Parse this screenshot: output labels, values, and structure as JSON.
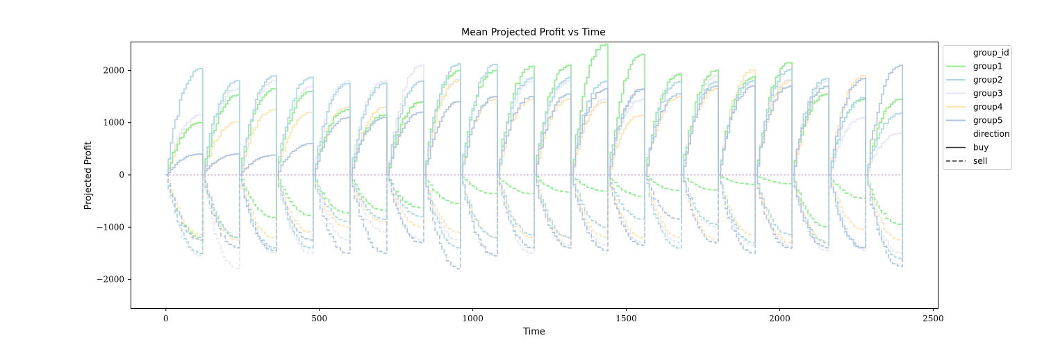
{
  "chart_data": {
    "type": "line",
    "title": "Mean Projected Profit vs Time",
    "xlabel": "Time",
    "ylabel": "Projected Profit",
    "xlim": [
      -115,
      2515
    ],
    "ylim": [
      -2550,
      2550
    ],
    "x_ticks": [
      0,
      500,
      1000,
      1500,
      2000,
      2500
    ],
    "y_ticks": [
      -2000,
      -1000,
      0,
      1000,
      2000
    ],
    "x_tick_labels": [
      "0",
      "500",
      "1000",
      "1500",
      "2000",
      "2500"
    ],
    "y_tick_labels": [
      "−2000",
      "−1000",
      "0",
      "1000",
      "2000"
    ],
    "period": 120,
    "periods": 20,
    "grid": false,
    "legend_position": "outside-top-right",
    "legend": {
      "hue_title": "group_id",
      "style_title": "direction",
      "groups": [
        {
          "name": "group1",
          "color": "#90ee90"
        },
        {
          "name": "group2",
          "color": "#add8e6"
        },
        {
          "name": "group3",
          "color": "#e6e6fa"
        },
        {
          "name": "group4",
          "color": "#ffe4b5"
        },
        {
          "name": "group5",
          "color": "#b0c4de"
        }
      ],
      "styles": [
        {
          "name": "buy",
          "dash": "solid"
        },
        {
          "name": "sell",
          "dash": "dashed"
        }
      ]
    },
    "zero_line": {
      "y": 0,
      "color": "#dda0dd",
      "style": "dotted"
    },
    "period_end_values": {
      "group1": {
        "buy": [
          1000,
          1530,
          1650,
          1600,
          1250,
          1150,
          1400,
          2000,
          2000,
          2080,
          2100,
          2500,
          2300,
          1920,
          2000,
          1880,
          2150,
          1550,
          1450,
          1450
        ],
        "sell": [
          -1200,
          -1200,
          -820,
          -780,
          -730,
          -680,
          -630,
          -550,
          -360,
          -360,
          -330,
          -310,
          -410,
          -300,
          -290,
          -180,
          -170,
          -1000,
          -450,
          -950
        ]
      },
      "group2": {
        "buy": [
          2030,
          1800,
          1900,
          1870,
          1750,
          1750,
          1800,
          2120,
          2110,
          1860,
          1860,
          1800,
          1630,
          1780,
          1780,
          1800,
          2020,
          1850,
          1480,
          1180
        ],
        "sell": [
          -1500,
          -1200,
          -1400,
          -1400,
          -900,
          -850,
          -800,
          -1400,
          -1200,
          -1150,
          -1200,
          -1000,
          -850,
          -1400,
          -950,
          -1300,
          -1150,
          -1300,
          -1400,
          -1600
        ]
      },
      "group3": {
        "buy": [
          1150,
          1650,
          1800,
          1700,
          1800,
          1800,
          2100,
          1830,
          1500,
          1800,
          1800,
          1450,
          1450,
          1950,
          1900,
          1800,
          1820,
          1800,
          1100,
          800
        ],
        "sell": [
          -1550,
          -1800,
          -1500,
          -1500,
          -1250,
          -1100,
          -1250,
          -1250,
          -1550,
          -1500,
          -1350,
          -1350,
          -1300,
          -1300,
          -1000,
          -1350,
          -1350,
          -1450,
          -1450,
          -1500
        ]
      },
      "group4": {
        "buy": [
          1000,
          1020,
          1250,
          1200,
          1300,
          1300,
          1400,
          1800,
          1450,
          1450,
          1450,
          1400,
          1150,
          1500,
          1650,
          2010,
          1800,
          1550,
          1900,
          1450
        ],
        "sell": [
          -1150,
          -1250,
          -1200,
          -1100,
          -1000,
          -900,
          -1000,
          -1100,
          -1200,
          -1200,
          -1200,
          -1200,
          -1200,
          -1200,
          -1250,
          -1150,
          -1300,
          -1300,
          -1050,
          -1250
        ]
      },
      "group5": {
        "buy": [
          400,
          400,
          380,
          600,
          1100,
          1100,
          1200,
          1400,
          1500,
          1500,
          1550,
          1650,
          1650,
          1550,
          1700,
          1700,
          1700,
          1700,
          1850,
          2100
        ],
        "sell": [
          -1250,
          -1400,
          -1450,
          -1250,
          -1500,
          -1500,
          -1300,
          -1800,
          -1550,
          -1400,
          -1400,
          -1450,
          -1350,
          -850,
          -1300,
          -1500,
          -1400,
          -1400,
          -1400,
          -1750
        ]
      }
    }
  }
}
